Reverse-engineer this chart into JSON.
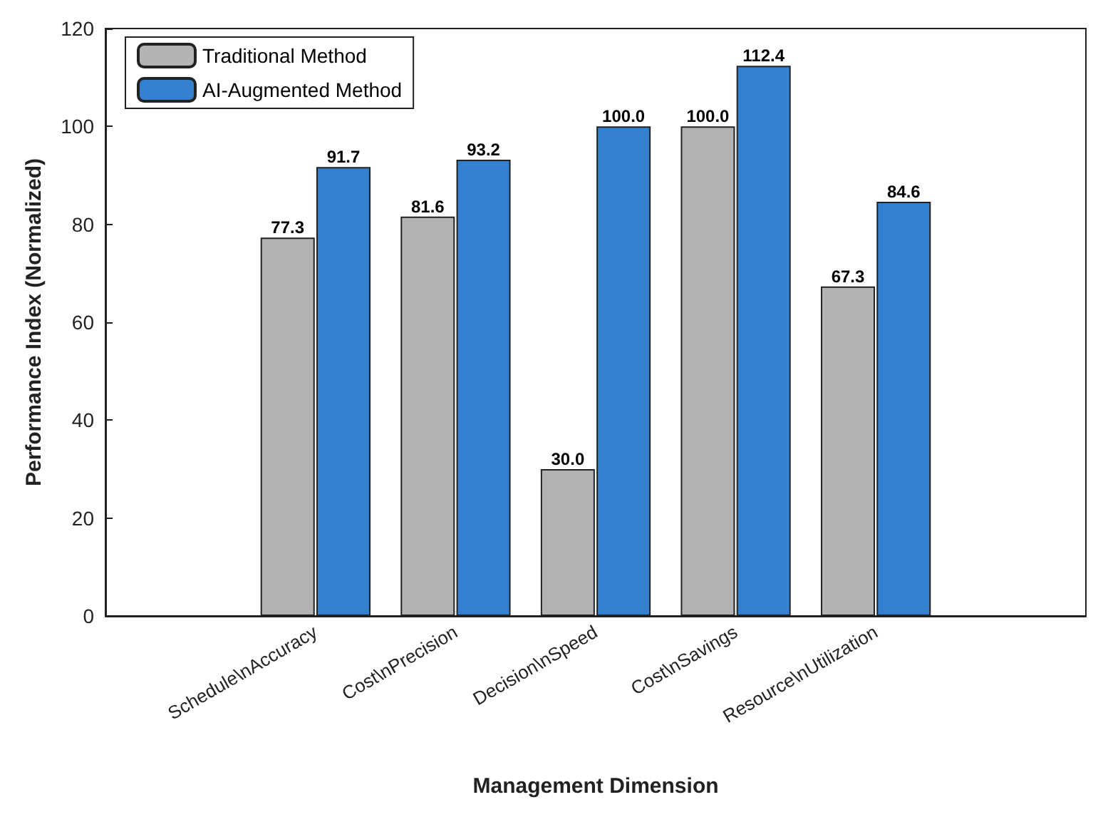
{
  "chart_data": {
    "type": "bar",
    "xlabel": "Management Dimension",
    "ylabel": "Performance Index (Normalized)",
    "categories": [
      "Schedule\\nAccuracy",
      "Cost\\nPrecision",
      "Decision\\nSpeed",
      "Cost\\nSavings",
      "Resource\\nUtilization"
    ],
    "series": [
      {
        "name": "Traditional Method",
        "color": "#b3b3b3",
        "values": [
          77.3,
          81.6,
          30.0,
          100.0,
          67.3
        ],
        "value_labels": [
          "77.3",
          "81.6",
          "30.0",
          "100.0",
          "67.3"
        ]
      },
      {
        "name": "AI-Augmented Method",
        "color": "#3380d0",
        "values": [
          91.7,
          93.2,
          100.0,
          112.4,
          84.6
        ],
        "value_labels": [
          "91.7",
          "93.2",
          "100.0",
          "112.4",
          "84.6"
        ]
      }
    ],
    "ylim": [
      0,
      120
    ],
    "yticks": [
      0,
      20,
      40,
      60,
      80,
      100,
      120
    ],
    "grid": false,
    "legend": "top left"
  }
}
